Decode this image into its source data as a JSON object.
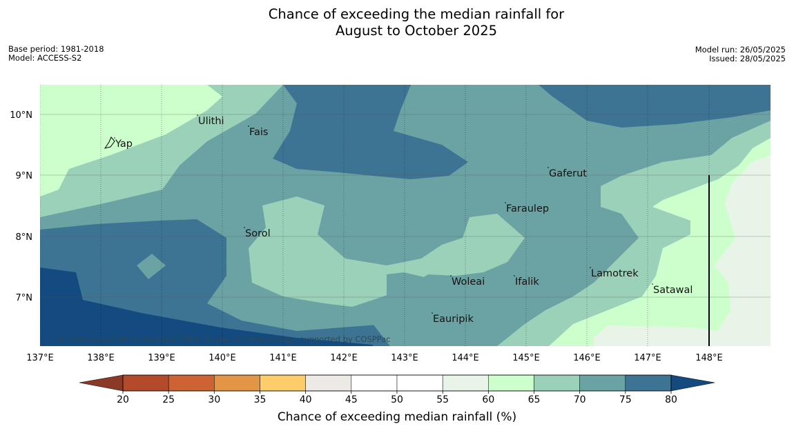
{
  "title": {
    "line1": "Chance of exceeding the median rainfall for",
    "line2": "August to October 2025"
  },
  "meta": {
    "base_period": "Base period: 1981-2018",
    "model": "Model: ACCESS-S2",
    "model_run": "Model run: 26/05/2025",
    "issued": "Issued: 28/05/2025"
  },
  "map": {
    "copyright": "© Commonwealth of Australia 2025, Bureau of Meteorology; supported by COSPPac",
    "lon_labels": [
      "137°E",
      "138°E",
      "139°E",
      "140°E",
      "141°E",
      "142°E",
      "143°E",
      "144°E",
      "145°E",
      "146°E",
      "147°E",
      "148°E"
    ],
    "lat_labels": [
      "10°N",
      "9°N",
      "8°N",
      "7°N"
    ],
    "places": [
      {
        "name": "Yap"
      },
      {
        "name": "Ulithi"
      },
      {
        "name": "Fais"
      },
      {
        "name": "Gaferut"
      },
      {
        "name": "Faraulep"
      },
      {
        "name": "Sorol"
      },
      {
        "name": "Woleai"
      },
      {
        "name": "Ifalik"
      },
      {
        "name": "Lamotrek"
      },
      {
        "name": "Satawal"
      },
      {
        "name": "Eauripik"
      }
    ]
  },
  "colorbar": {
    "label": "Chance of exceeding median rainfall (%)",
    "ticks": [
      "20",
      "25",
      "30",
      "35",
      "40",
      "45",
      "50",
      "55",
      "60",
      "65",
      "70",
      "75",
      "80"
    ],
    "colors": [
      "#b34a2c",
      "#cd6232",
      "#e29545",
      "#fdcd6b",
      "#ede9e4",
      "#ffffff",
      "#ffffff",
      "#e9f4e9",
      "#ccffcc",
      "#9bd1b9",
      "#6ba3a4",
      "#3e7493"
    ],
    "under_color": "#8a3a26",
    "over_color": "#134a80"
  }
}
